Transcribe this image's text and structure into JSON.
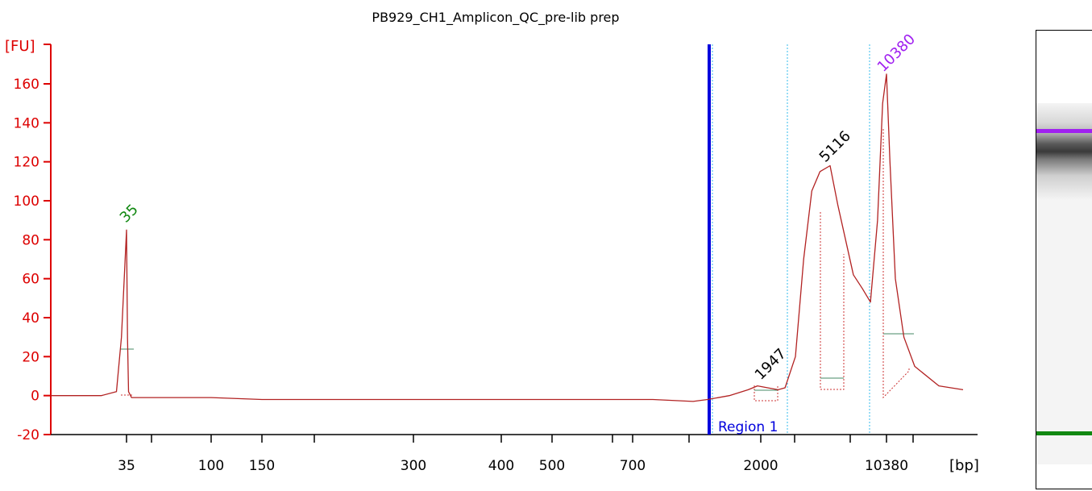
{
  "chart_data": {
    "type": "line",
    "title": "PB929_CH1_Amplicon_QC_pre-lib prep",
    "ylabel": "[FU]",
    "xlabel": "[bp]",
    "ylim": [
      -20,
      170
    ],
    "y_ticks": [
      -20,
      0,
      20,
      40,
      60,
      80,
      100,
      120,
      140,
      160
    ],
    "x_tick_labels": [
      "35",
      "100",
      "150",
      "300",
      "400",
      "500",
      "700",
      "2000",
      "10380"
    ],
    "region_label": "Region 1",
    "peak_labels": [
      {
        "text": "35",
        "color": "#118811"
      },
      {
        "text": "1947",
        "color": "#000000"
      },
      {
        "text": "5116",
        "color": "#000000"
      },
      {
        "text": "10380",
        "color": "#a020f0"
      }
    ],
    "series": [
      {
        "color": "#b22222",
        "x_bp": [
          20,
          30,
          33,
          34,
          35,
          36,
          37,
          40,
          60,
          100,
          150,
          200,
          250,
          300,
          400,
          500,
          600,
          700,
          800,
          1000,
          1200,
          1500,
          1800,
          1947,
          2200,
          2500,
          2700,
          3000,
          3500,
          4000,
          4500,
          5116,
          5800,
          6500,
          7200,
          8000,
          8800,
          9500,
          10000,
          10380,
          10700,
          11200,
          12000,
          13000,
          15000,
          17000
        ],
        "y_fu": [
          0,
          0,
          2,
          30,
          85,
          30,
          2,
          -1,
          -1,
          -1,
          -2,
          -2,
          -2,
          -2,
          -2,
          -2,
          -2,
          -2,
          -2,
          -3,
          -2,
          0,
          3,
          5,
          4,
          3,
          4,
          20,
          70,
          105,
          115,
          118,
          98,
          80,
          62,
          55,
          48,
          90,
          150,
          165,
          120,
          60,
          30,
          15,
          5,
          3
        ]
      }
    ]
  },
  "colors": {
    "axis": "#dd0000",
    "trace": "#b22222",
    "region_line": "#0000dd",
    "guide_line": "#33bbee",
    "peak_fill_line": "#cc3333",
    "baseline_mark": "#448866",
    "upper_marker": "#a020f0",
    "lower_marker": "#118811"
  }
}
